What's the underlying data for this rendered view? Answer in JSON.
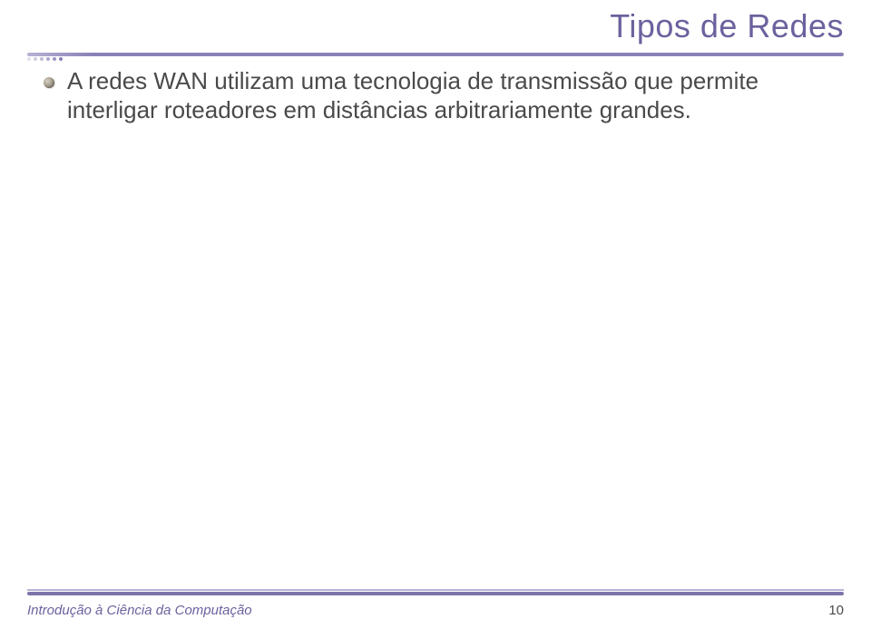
{
  "colors": {
    "title": "#6a629e",
    "rule": "#8a82b6",
    "rule_light": "#b8b2d4",
    "body_text": "#4a4a4a",
    "footer_text": "#6a629e",
    "footer_bar_thin": "#b8b2d4",
    "footer_bar_thick": "#7c74aa"
  },
  "title": "Tipos de Redes",
  "bullet": {
    "text": "A redes WAN utilizam uma tecnologia de transmissão que permite interligar roteadores em distâncias arbitrariamente grandes."
  },
  "footer": {
    "text": "Introdução à Ciência da Computação",
    "page": "10"
  }
}
